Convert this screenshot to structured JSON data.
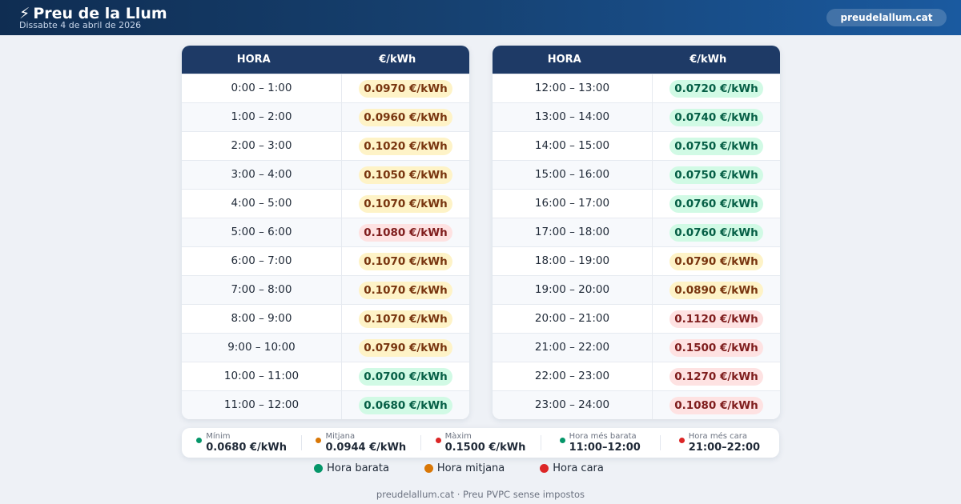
{
  "header": {
    "bolt_icon": "⚡",
    "title": "Preu de la Llum",
    "date": "Dissabte 4 de abril de 2026",
    "site": "preudelallum.cat"
  },
  "colors": {
    "low": "#059669",
    "mid": "#d97706",
    "high": "#dc2626"
  },
  "tables": [
    {
      "col_hour": "HORA",
      "col_price": "€/kWh",
      "rows": [
        {
          "hour": "0:00 – 1:00",
          "price": "0.0970 €/kWh",
          "level": "mid"
        },
        {
          "hour": "1:00 – 2:00",
          "price": "0.0960 €/kWh",
          "level": "mid"
        },
        {
          "hour": "2:00 – 3:00",
          "price": "0.1020 €/kWh",
          "level": "mid"
        },
        {
          "hour": "3:00 – 4:00",
          "price": "0.1050 €/kWh",
          "level": "mid"
        },
        {
          "hour": "4:00 – 5:00",
          "price": "0.1070 €/kWh",
          "level": "mid"
        },
        {
          "hour": "5:00 – 6:00",
          "price": "0.1080 €/kWh",
          "level": "high"
        },
        {
          "hour": "6:00 – 7:00",
          "price": "0.1070 €/kWh",
          "level": "mid"
        },
        {
          "hour": "7:00 – 8:00",
          "price": "0.1070 €/kWh",
          "level": "mid"
        },
        {
          "hour": "8:00 – 9:00",
          "price": "0.1070 €/kWh",
          "level": "mid"
        },
        {
          "hour": "9:00 – 10:00",
          "price": "0.0790 €/kWh",
          "level": "mid"
        },
        {
          "hour": "10:00 – 11:00",
          "price": "0.0700 €/kWh",
          "level": "low"
        },
        {
          "hour": "11:00 – 12:00",
          "price": "0.0680 €/kWh",
          "level": "low"
        }
      ]
    },
    {
      "col_hour": "HORA",
      "col_price": "€/kWh",
      "rows": [
        {
          "hour": "12:00 – 13:00",
          "price": "0.0720 €/kWh",
          "level": "low"
        },
        {
          "hour": "13:00 – 14:00",
          "price": "0.0740 €/kWh",
          "level": "low"
        },
        {
          "hour": "14:00 – 15:00",
          "price": "0.0750 €/kWh",
          "level": "low"
        },
        {
          "hour": "15:00 – 16:00",
          "price": "0.0750 €/kWh",
          "level": "low"
        },
        {
          "hour": "16:00 – 17:00",
          "price": "0.0760 €/kWh",
          "level": "low"
        },
        {
          "hour": "17:00 – 18:00",
          "price": "0.0760 €/kWh",
          "level": "low"
        },
        {
          "hour": "18:00 – 19:00",
          "price": "0.0790 €/kWh",
          "level": "mid"
        },
        {
          "hour": "19:00 – 20:00",
          "price": "0.0890 €/kWh",
          "level": "mid"
        },
        {
          "hour": "20:00 – 21:00",
          "price": "0.1120 €/kWh",
          "level": "high"
        },
        {
          "hour": "21:00 – 22:00",
          "price": "0.1500 €/kWh",
          "level": "high"
        },
        {
          "hour": "22:00 – 23:00",
          "price": "0.1270 €/kWh",
          "level": "high"
        },
        {
          "hour": "23:00 – 24:00",
          "price": "0.1080 €/kWh",
          "level": "high"
        }
      ]
    }
  ],
  "summary": [
    {
      "label": "Mínim",
      "value": "0.0680 €/kWh",
      "level": "low"
    },
    {
      "label": "Mitjana",
      "value": "0.0944 €/kWh",
      "level": "mid"
    },
    {
      "label": "Màxim",
      "value": "0.1500 €/kWh",
      "level": "high"
    },
    {
      "label": "Hora més barata",
      "value": "11:00–12:00",
      "level": "low"
    },
    {
      "label": "Hora més cara",
      "value": "21:00–22:00",
      "level": "high"
    }
  ],
  "legend": [
    {
      "label": "Hora barata",
      "level": "low"
    },
    {
      "label": "Hora mitjana",
      "level": "mid"
    },
    {
      "label": "Hora cara",
      "level": "high"
    }
  ],
  "footer": "preudelallum.cat · Preu PVPC sense impostos"
}
